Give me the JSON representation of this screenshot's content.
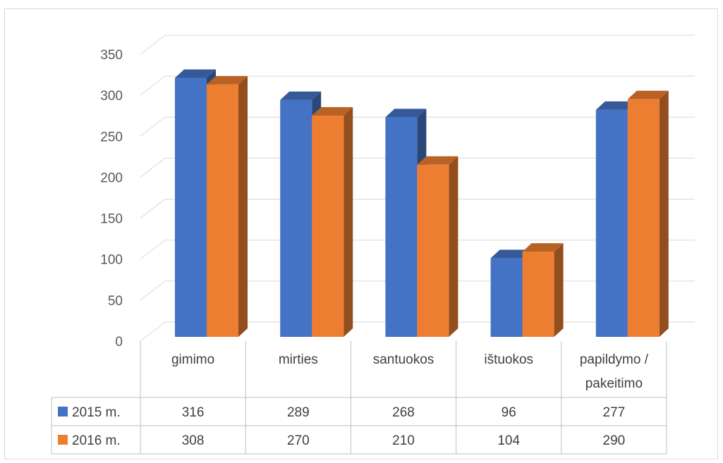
{
  "chart_data": {
    "type": "bar",
    "title": "",
    "xlabel": "",
    "ylabel": "",
    "ylim": [
      0,
      350
    ],
    "y_ticks": [
      0,
      50,
      100,
      150,
      200,
      250,
      300,
      350
    ],
    "grid": true,
    "three_d": true,
    "legend": "data-table",
    "categories": [
      [
        "gimimo"
      ],
      [
        "mirties"
      ],
      [
        "santuokos"
      ],
      [
        "ištuokos"
      ],
      [
        "papildymo /",
        "pakeitimo"
      ]
    ],
    "series": [
      {
        "name": "2015 m.",
        "color": "#4472c4",
        "values": [
          316,
          289,
          268,
          96,
          277
        ]
      },
      {
        "name": "2016 m.",
        "color": "#ed7d31",
        "values": [
          308,
          270,
          210,
          104,
          290
        ]
      }
    ]
  }
}
